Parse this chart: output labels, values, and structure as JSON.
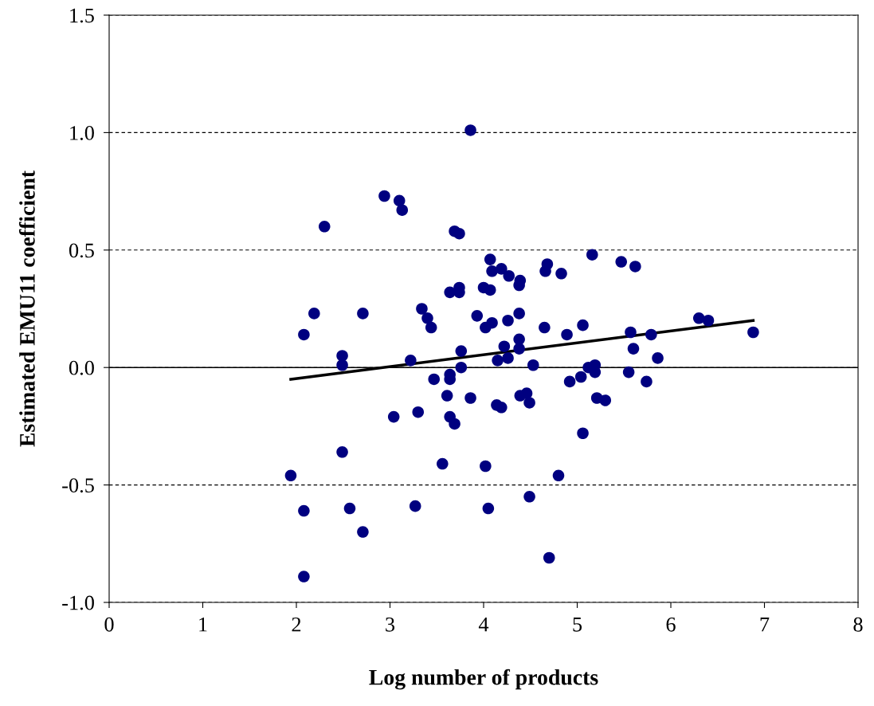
{
  "chart_data": {
    "type": "scatter",
    "xlabel": "Log number of products",
    "ylabel": "Estimated EMU11 coefficient",
    "xlim": [
      0,
      8
    ],
    "xticks": [
      0,
      1,
      2,
      3,
      4,
      5,
      6,
      7,
      8
    ],
    "ylim": [
      -1.0,
      1.5
    ],
    "yticks": [
      {
        "value": -1.0,
        "label": "-1.0"
      },
      {
        "value": -0.5,
        "label": "-0.5"
      },
      {
        "value": 0,
        "label": "0.0"
      },
      {
        "value": 0.5,
        "label": "0.5"
      },
      {
        "value": 1.0,
        "label": "1.0"
      },
      {
        "value": 1.5,
        "label": "1.5"
      }
    ],
    "grid": "y",
    "legend": false,
    "marker": "circle",
    "ref_lines": [
      {
        "axis": "y",
        "value": 0,
        "color": "#000000",
        "line_style": "solid"
      }
    ],
    "series": [
      {
        "color": "#000080",
        "x": [
          1.94,
          2.08,
          2.08,
          2.08,
          2.19,
          2.3,
          2.49,
          2.49,
          2.49,
          2.57,
          2.71,
          2.71,
          2.94,
          3.04,
          3.1,
          3.13,
          3.22,
          3.27,
          3.3,
          3.34,
          3.4,
          3.44,
          3.47,
          3.56,
          3.61,
          3.64,
          3.64,
          3.64,
          3.64,
          3.69,
          3.69,
          3.74,
          3.74,
          3.74,
          3.76,
          3.76,
          3.86,
          3.86,
          3.93,
          4.0,
          4.02,
          4.02,
          4.05,
          4.07,
          4.07,
          4.09,
          4.09,
          4.14,
          4.15,
          4.19,
          4.19,
          4.22,
          4.26,
          4.26,
          4.27,
          4.38,
          4.38,
          4.38,
          4.38,
          4.39,
          4.39,
          4.46,
          4.49,
          4.49,
          4.53,
          4.65,
          4.66,
          4.68,
          4.7,
          4.8,
          4.83,
          4.89,
          4.92,
          5.04,
          5.06,
          5.06,
          5.12,
          5.16,
          5.19,
          5.19,
          5.21,
          5.3,
          5.47,
          5.55,
          5.57,
          5.6,
          5.62,
          5.74,
          5.79,
          5.86,
          6.3,
          6.4,
          6.88
        ],
        "values": [
          -0.46,
          -0.61,
          -0.89,
          0.14,
          0.23,
          0.6,
          0.05,
          0.01,
          -0.36,
          -0.6,
          0.23,
          -0.7,
          0.73,
          -0.21,
          0.71,
          0.67,
          0.03,
          -0.59,
          -0.19,
          0.25,
          0.21,
          0.17,
          -0.05,
          -0.41,
          -0.12,
          -0.21,
          -0.05,
          -0.03,
          0.32,
          -0.24,
          0.58,
          0.57,
          0.34,
          0.32,
          0.07,
          0.0,
          1.01,
          -0.13,
          0.22,
          0.34,
          0.17,
          -0.42,
          -0.6,
          0.46,
          0.33,
          0.41,
          0.19,
          -0.16,
          0.03,
          0.42,
          -0.17,
          0.09,
          0.2,
          0.04,
          0.39,
          0.35,
          0.23,
          0.12,
          0.08,
          0.37,
          -0.12,
          -0.11,
          -0.15,
          -0.55,
          0.01,
          0.17,
          0.41,
          0.44,
          -0.81,
          -0.46,
          0.4,
          0.14,
          -0.06,
          -0.04,
          0.18,
          -0.28,
          0.0,
          0.48,
          0.01,
          -0.02,
          -0.13,
          -0.14,
          0.45,
          -0.02,
          0.15,
          0.08,
          0.43,
          -0.06,
          0.14,
          0.04,
          0.21,
          0.2,
          0.15
        ]
      },
      {
        "type": "line",
        "color": "#000000",
        "marker": "none",
        "x": [
          1.94,
          6.88
        ],
        "values": [
          -0.05,
          0.2
        ]
      }
    ]
  }
}
